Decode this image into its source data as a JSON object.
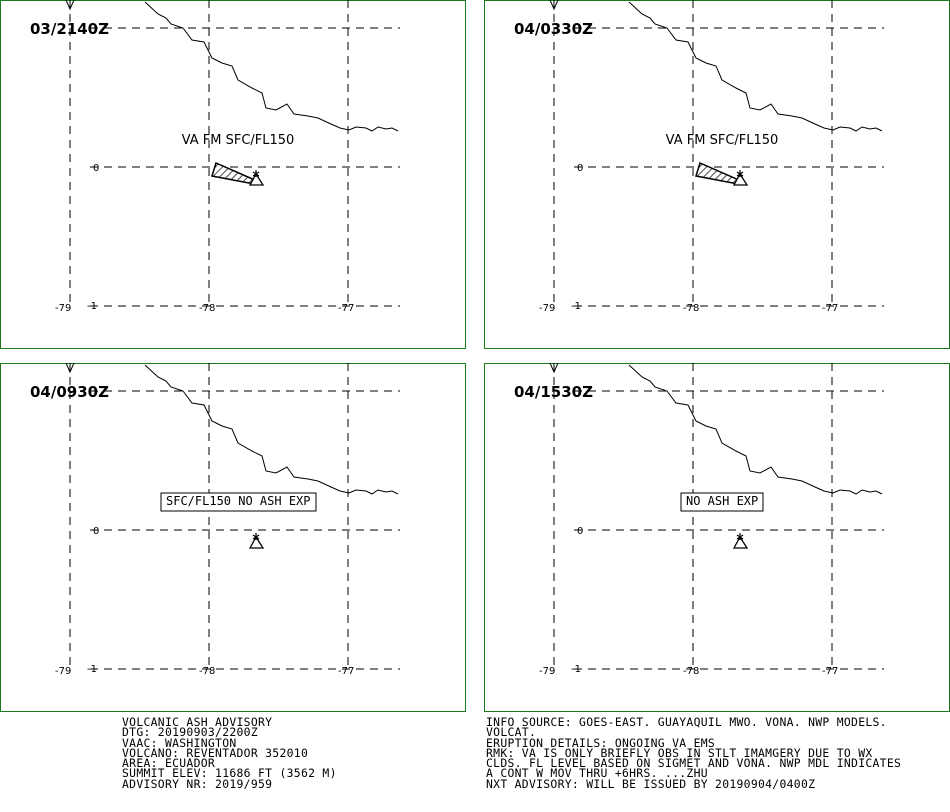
{
  "panels": [
    {
      "time": "03/2140Z",
      "label": "VA FM SFC/FL150",
      "label_boxed": false,
      "show_ash": true
    },
    {
      "time": "04/0330Z",
      "label": "VA FM SFC/FL150",
      "label_boxed": false,
      "show_ash": true
    },
    {
      "time": "04/0930Z",
      "label": "SFC/FL150 NO ASH EXP",
      "label_boxed": true,
      "show_ash": false
    },
    {
      "time": "04/1530Z",
      "label": "NO ASH EXP",
      "label_boxed": true,
      "show_ash": false
    }
  ],
  "map": {
    "lon_labels": [
      "-79",
      "-78",
      "-77"
    ],
    "lat_labels": [
      "0",
      "-1"
    ]
  },
  "advisory_left": [
    "VOLCANIC ASH ADVISORY",
    "DTG: 20190903/2200Z",
    "VAAC: WASHINGTON",
    "VOLCANO: REVENTADOR 352010",
    "AREA: ECUADOR",
    "SUMMIT ELEV: 11686 FT (3562 M)",
    "ADVISORY NR: 2019/959"
  ],
  "advisory_right": [
    "INFO SOURCE: GOES-EAST. GUAYAQUIL MWO. VONA. NWP MODELS.",
    "VOLCAT.",
    "ERUPTION DETAILS: ONGOING VA EMS",
    "RMK: VA IS ONLY BRIEFLY OBS IN STLT IMAMGERY DUE TO WX",
    "CLDS. FL LEVEL BASED ON SIGMET AND VONA. NWP MDL INDICATES",
    "A CONT W MOV THRU +6HRS. ...ZHU",
    "NXT ADVISORY: WILL BE ISSUED BY 20190904/0400Z"
  ],
  "colors": {
    "frame": "#1a7a1a",
    "ink": "#000000",
    "background": "#ffffff"
  }
}
